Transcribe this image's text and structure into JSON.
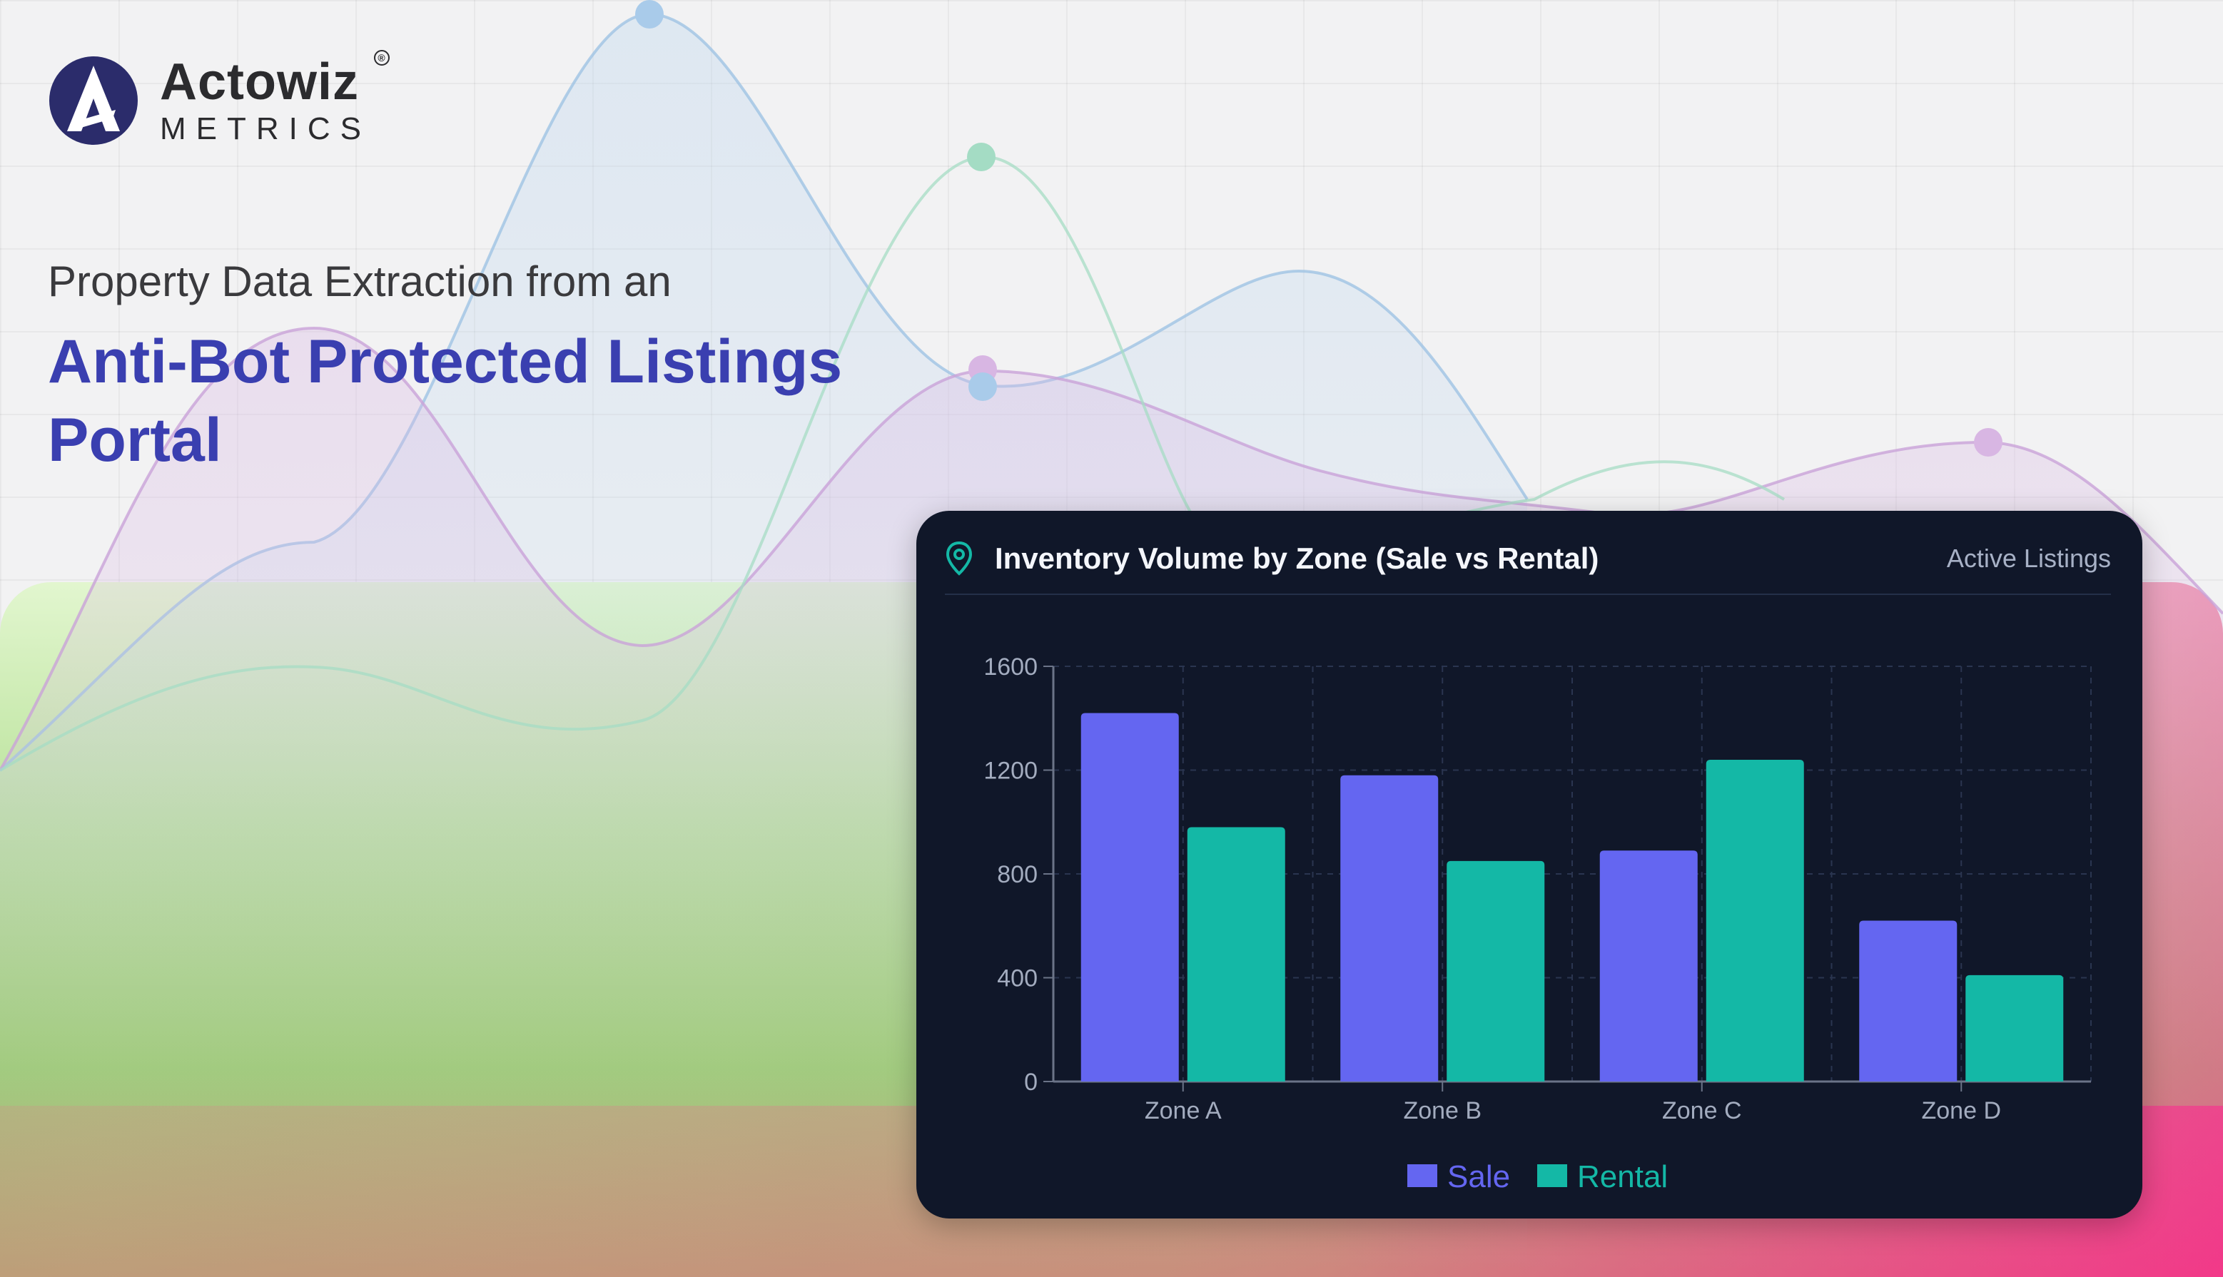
{
  "brand": {
    "name": "Actowiz",
    "sub": "METRICS",
    "reg": "®"
  },
  "hero": {
    "subtitle": "Property Data Extraction from an",
    "title": "Anti-Bot Protected Listings Portal"
  },
  "colors": {
    "accent": "#3a3fb0",
    "card_bg": "#101729",
    "sale": "#6466f1",
    "rental": "#14b8a6",
    "pin": "#14b8a6"
  },
  "card": {
    "icon": "map-pin-icon",
    "badge": "Active Listings"
  },
  "chart_data": {
    "type": "bar",
    "title": "Inventory Volume by Zone (Sale vs Rental)",
    "categories": [
      "Zone A",
      "Zone B",
      "Zone C",
      "Zone D"
    ],
    "series": [
      {
        "name": "Sale",
        "color": "#6466f1",
        "values": [
          1420,
          1180,
          890,
          620
        ]
      },
      {
        "name": "Rental",
        "color": "#14b8a6",
        "values": [
          980,
          850,
          1240,
          410
        ]
      }
    ],
    "yticks": [
      0,
      400,
      800,
      1200,
      1600
    ],
    "ylim": [
      0,
      1600
    ],
    "grid": true,
    "legend": "bottom-center"
  }
}
